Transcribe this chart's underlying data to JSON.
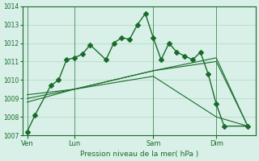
{
  "title": "",
  "xlabel": "Pression niveau de la mer( hPa )",
  "ylabel": "",
  "bg_color": "#d8f0e8",
  "line_color": "#1a6b2a",
  "grid_color": "#b0d8c0",
  "ylim": [
    1007,
    1014
  ],
  "yticks": [
    1007,
    1008,
    1009,
    1010,
    1011,
    1012,
    1013,
    1014
  ],
  "xtick_labels": [
    "Ven",
    "Lun",
    "Sam",
    "Dim"
  ],
  "xtick_pos": [
    0,
    3,
    8,
    12
  ],
  "series": [
    {
      "x": [
        0,
        0.5,
        1.5,
        2,
        2.5,
        3,
        3.5,
        4,
        5,
        5.5,
        6,
        6.5,
        7,
        7.5,
        8,
        8.5,
        9,
        9.5,
        10,
        10.5,
        11,
        11.5,
        12,
        12.5,
        14
      ],
      "y": [
        1007.2,
        1008.1,
        1009.7,
        1010.0,
        1011.1,
        1011.2,
        1011.4,
        1011.9,
        1011.1,
        1012.0,
        1012.3,
        1012.2,
        1013.0,
        1013.6,
        1012.3,
        1011.1,
        1012.0,
        1011.5,
        1011.3,
        1011.1,
        1011.5,
        1010.3,
        1008.7,
        1007.5,
        1007.5
      ],
      "marker": "D",
      "markersize": 3,
      "with_markers": true
    },
    {
      "x": [
        0,
        3,
        8,
        12,
        14
      ],
      "y": [
        1009.0,
        1009.5,
        1010.5,
        1011.0,
        1007.5
      ],
      "marker": "",
      "markersize": 0,
      "with_markers": false
    },
    {
      "x": [
        0,
        3,
        8,
        12,
        14
      ],
      "y": [
        1009.2,
        1009.5,
        1010.5,
        1011.2,
        1007.5
      ],
      "marker": "",
      "markersize": 0,
      "with_markers": false
    },
    {
      "x": [
        0,
        3,
        8,
        12,
        14
      ],
      "y": [
        1008.8,
        1009.5,
        1010.2,
        1008.0,
        1007.5
      ],
      "marker": "",
      "markersize": 0,
      "with_markers": false
    }
  ],
  "vlines": [
    0,
    3,
    8,
    12
  ],
  "figsize": [
    3.2,
    2.0
  ],
  "dpi": 100
}
